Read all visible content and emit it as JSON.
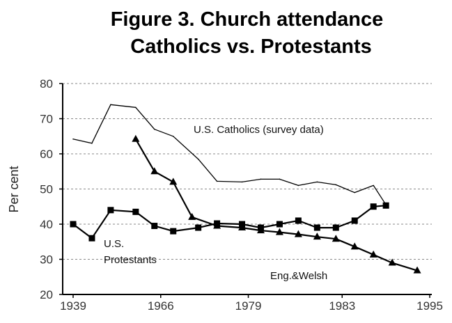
{
  "chart_data": {
    "type": "line",
    "title": "Figure 3. Church attendance",
    "subtitle": "Catholics vs. Protestants",
    "xlabel": "",
    "ylabel": "Per cent",
    "ylim": [
      20,
      80
    ],
    "yticks": [
      20,
      30,
      40,
      50,
      60,
      70,
      80
    ],
    "xlim": [
      1939,
      1998
    ],
    "xtick_labels": [
      {
        "x": 1939,
        "label": "1939"
      },
      {
        "x": 1953,
        "label": "1966"
      },
      {
        "x": 1967,
        "label": "1979"
      },
      {
        "x": 1982,
        "label": "1983"
      },
      {
        "x": 1996,
        "label": "1995"
      }
    ],
    "grid": "horizontal dashed",
    "series": [
      {
        "name": "U.S. Catholics (survey data)",
        "marker": "none",
        "label": "U.S.  Catholics (survey data)",
        "points": [
          [
            1939,
            64.2
          ],
          [
            1942,
            63
          ],
          [
            1945,
            74
          ],
          [
            1949,
            73.2
          ],
          [
            1952,
            67
          ],
          [
            1955,
            65
          ],
          [
            1959,
            58.5
          ],
          [
            1962,
            52.2
          ],
          [
            1966,
            52
          ],
          [
            1969,
            52.8
          ],
          [
            1972,
            52.8
          ],
          [
            1975,
            51
          ],
          [
            1978,
            52
          ],
          [
            1981,
            51.2
          ],
          [
            1984,
            49
          ],
          [
            1987,
            51
          ],
          [
            1989,
            45.5
          ]
        ]
      },
      {
        "name": "U.S. Protestants",
        "marker": "square",
        "label_line1": "U.S.",
        "label_line2": "Protestants",
        "points": [
          [
            1939,
            40
          ],
          [
            1942,
            36
          ],
          [
            1945,
            44
          ],
          [
            1949,
            43.5
          ],
          [
            1952,
            39.5
          ],
          [
            1955,
            38
          ],
          [
            1959,
            39
          ],
          [
            1962,
            40.2
          ],
          [
            1966,
            40
          ],
          [
            1969,
            39
          ],
          [
            1972,
            40
          ],
          [
            1975,
            41
          ],
          [
            1978,
            39
          ],
          [
            1981,
            39
          ],
          [
            1984,
            41
          ],
          [
            1987,
            45
          ],
          [
            1989,
            45.3
          ]
        ]
      },
      {
        "name": "Eng.&Welsh",
        "marker": "triangle",
        "label": "Eng.&Welsh",
        "points": [
          [
            1949,
            64.2
          ],
          [
            1952,
            55
          ],
          [
            1955,
            52
          ],
          [
            1958,
            42
          ],
          [
            1962,
            39.5
          ],
          [
            1966,
            39
          ],
          [
            1969,
            38.2
          ],
          [
            1972,
            37.7
          ],
          [
            1975,
            37.1
          ],
          [
            1978,
            36.4
          ],
          [
            1981,
            35.8
          ],
          [
            1984,
            33.6
          ],
          [
            1987,
            31.3
          ],
          [
            1990,
            29
          ],
          [
            1994,
            26.8
          ]
        ]
      }
    ]
  }
}
